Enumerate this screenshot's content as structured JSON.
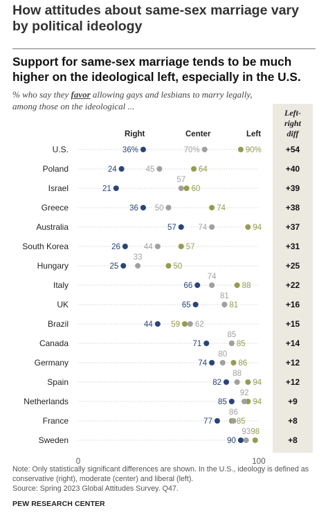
{
  "header": {
    "title": "How attitudes about same-sex marriage vary by political ideology"
  },
  "chart_data": {
    "type": "dot-plot",
    "title": "Support for same-sex marriage tends to be much higher on the ideological left, especially in the U.S.",
    "subtitle_parts": {
      "before": "% who say they ",
      "emphasis": "favor",
      "after": " allowing gays and lesbians to marry legally, among those on the ideological ..."
    },
    "axis": {
      "min": 0,
      "max": 100,
      "tick_labels": [
        "0",
        "100"
      ]
    },
    "series": [
      {
        "name": "Right",
        "color": "#27457a"
      },
      {
        "name": "Center",
        "color": "#a0a0a0"
      },
      {
        "name": "Left",
        "color": "#949c4e"
      }
    ],
    "diff_header": [
      "Left-",
      "right",
      "diff"
    ],
    "rows": [
      {
        "country": "U.S.",
        "right": 36,
        "center": 70,
        "left": 90,
        "diff": "+54",
        "labels": {
          "right": "36%",
          "center": "70%",
          "left": "90%"
        }
      },
      {
        "country": "Poland",
        "right": 24,
        "center": 45,
        "left": 64,
        "diff": "+40",
        "labels": {
          "right": "24",
          "center": "45",
          "left": "64"
        }
      },
      {
        "country": "Israel",
        "right": 21,
        "center": 57,
        "left": 60,
        "diff": "+39",
        "labels": {
          "right": "21",
          "center": "57",
          "left": "60"
        }
      },
      {
        "country": "Greece",
        "right": 36,
        "center": 50,
        "left": 74,
        "diff": "+38",
        "labels": {
          "right": "36",
          "center": "50",
          "left": "74"
        }
      },
      {
        "country": "Australia",
        "right": 57,
        "center": 74,
        "left": 94,
        "diff": "+37",
        "labels": {
          "right": "57",
          "center": "74",
          "left": "94"
        }
      },
      {
        "country": "South Korea",
        "right": 26,
        "center": 44,
        "left": 57,
        "diff": "+31",
        "labels": {
          "right": "26",
          "center": "44",
          "left": "57"
        }
      },
      {
        "country": "Hungary",
        "right": 25,
        "center": 33,
        "left": 50,
        "diff": "+25",
        "labels": {
          "right": "25",
          "center": "33",
          "left": "50"
        }
      },
      {
        "country": "Italy",
        "right": 66,
        "center": 74,
        "left": 88,
        "diff": "+22",
        "labels": {
          "right": "66",
          "center": "74",
          "left": "88"
        }
      },
      {
        "country": "UK",
        "right": 65,
        "center": 81,
        "left": 81,
        "diff": "+16",
        "labels": {
          "right": "65",
          "center": "81",
          "left": "81"
        }
      },
      {
        "country": "Brazil",
        "right": 44,
        "center": 62,
        "left": 59,
        "diff": "+15",
        "labels": {
          "right": "44",
          "center": "62",
          "left": "59"
        }
      },
      {
        "country": "Canada",
        "right": 71,
        "center": 85,
        "left": 85,
        "diff": "+14",
        "labels": {
          "right": "71",
          "center": "85",
          "left": "85"
        }
      },
      {
        "country": "Germany",
        "right": 74,
        "center": 80,
        "left": 86,
        "diff": "+12",
        "labels": {
          "right": "74",
          "center": "80",
          "left": "86"
        }
      },
      {
        "country": "Spain",
        "right": 82,
        "center": 88,
        "left": 94,
        "diff": "+12",
        "labels": {
          "right": "82",
          "center": "88",
          "left": "94"
        }
      },
      {
        "country": "Netherlands",
        "right": 85,
        "center": 92,
        "left": 94,
        "diff": "+9",
        "labels": {
          "right": "85",
          "center": "92",
          "left": "94"
        }
      },
      {
        "country": "France",
        "right": 77,
        "center": 86,
        "left": 85,
        "diff": "+8",
        "labels": {
          "right": "77",
          "center": "86",
          "left": "85"
        }
      },
      {
        "country": "Sweden",
        "right": 90,
        "center": 93,
        "left": 98,
        "diff": "+8",
        "labels": {
          "right": "90",
          "center": "93",
          "left": "98"
        }
      }
    ]
  },
  "footer": {
    "note": "Note: Only statistically significant differences are shown. In the U.S., ideology is defined as conservative (right), moderate (center) and liberal (left).",
    "source": "Source: Spring 2023 Global Attitudes Survey. Q47.",
    "org": "PEW RESEARCH CENTER"
  }
}
